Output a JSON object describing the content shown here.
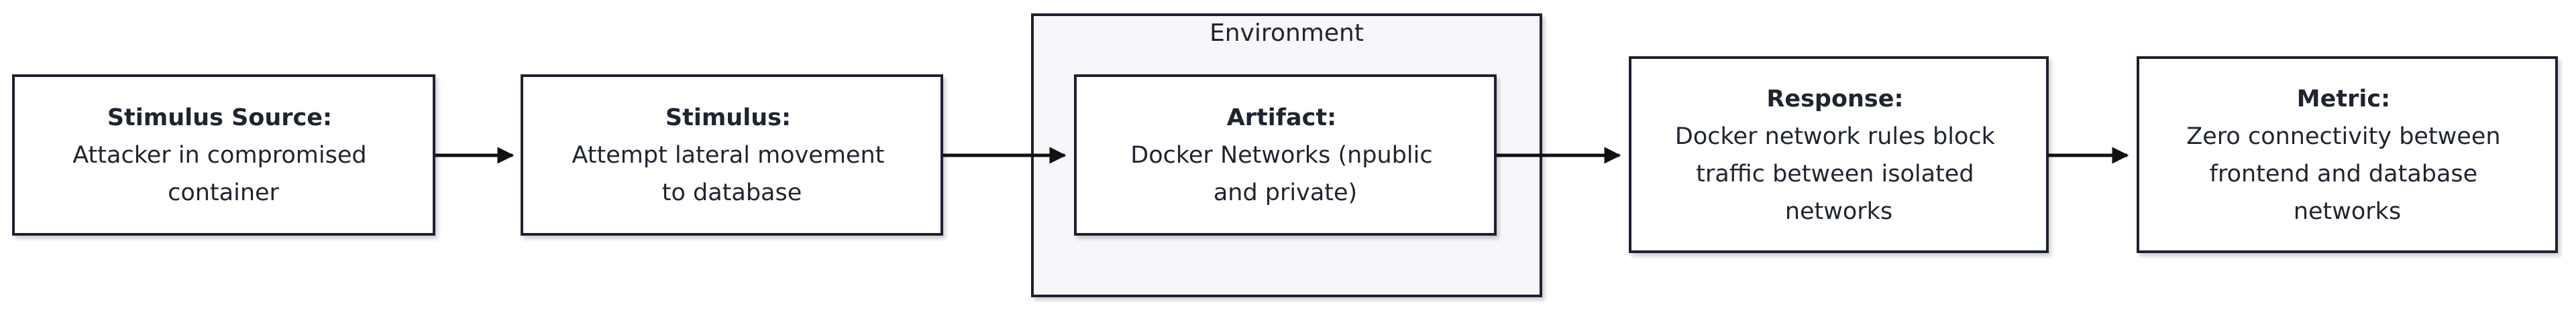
{
  "diagram": {
    "environment": {
      "label": "Environment"
    },
    "nodes": [
      {
        "id": "stimulus-source",
        "title": "Stimulus Source:",
        "lines": [
          "Attacker in compromised",
          "container"
        ]
      },
      {
        "id": "stimulus",
        "title": "Stimulus:",
        "lines": [
          "Attempt lateral movement",
          "to database"
        ]
      },
      {
        "id": "artifact",
        "title": "Artifact:",
        "lines": [
          "Docker Networks (npublic",
          "and private)"
        ]
      },
      {
        "id": "response",
        "title": "Response:",
        "lines": [
          "Docker network rules block",
          "traffic between isolated",
          "networks"
        ]
      },
      {
        "id": "metric",
        "title": "Metric:",
        "lines": [
          "Zero connectivity between",
          "frontend and database",
          "networks"
        ]
      }
    ],
    "colors": {
      "background": "#ffffff",
      "node_fill": "#ffffff",
      "environment_fill": "#f7f7fb",
      "stroke": "#1f2430",
      "text": "#1f2430"
    }
  }
}
